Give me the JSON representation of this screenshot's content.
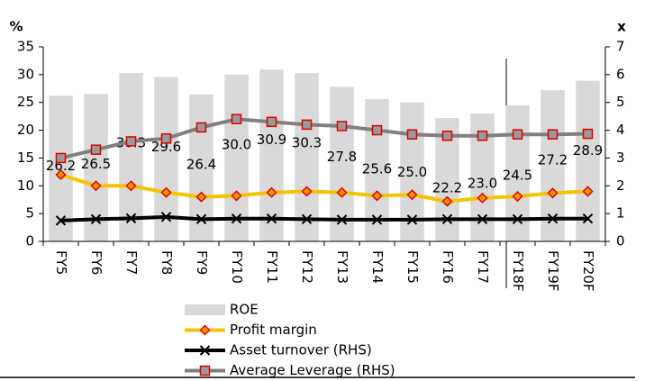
{
  "chart_data": {
    "type": "bar_line_combo",
    "y_label": "%",
    "y2_label": "x",
    "categories": [
      "FY5",
      "FY6",
      "FY7",
      "FY8",
      "FY9",
      "FY10",
      "FY11",
      "FY12",
      "FY13",
      "FY14",
      "FY15",
      "FY16",
      "FY17",
      "FY18F",
      "FY19F",
      "FY20F"
    ],
    "ylim": [
      0,
      35
    ],
    "yticks": [
      0,
      5,
      10,
      15,
      20,
      25,
      30,
      35
    ],
    "y2lim": [
      0,
      7
    ],
    "y2ticks": [
      0,
      1,
      2,
      3,
      4,
      5,
      6,
      7
    ],
    "series": [
      {
        "name": "ROE",
        "type": "bar",
        "color": "#d9d9d9",
        "values": [
          26.2,
          26.5,
          30.3,
          29.6,
          26.4,
          30,
          30.9,
          30.3,
          27.8,
          25.6,
          25,
          22.2,
          23,
          24.5,
          27.2,
          28.9
        ],
        "value_labels": [
          "26.2",
          "26.5",
          "30.3",
          "29.6",
          "26.4",
          "30.0",
          "30.9",
          "30.3",
          "27.8",
          "25.6",
          "25.0",
          "22.2",
          "23.0",
          "24.5",
          "27.2",
          "28.9"
        ]
      },
      {
        "name": "Profit margin",
        "type": "line",
        "color": "#f5c400",
        "marker": "diamond",
        "marker_color": "#ff9900",
        "marker_edge": "#e00000",
        "values": [
          12,
          10,
          10,
          8.8,
          8,
          8.2,
          8.8,
          9,
          8.8,
          8.2,
          8.4,
          7.2,
          7.8,
          8.1,
          8.7,
          9
        ]
      },
      {
        "name": "Asset turnover (RHS)",
        "type": "line",
        "axis": "y2",
        "color": "#000000",
        "marker": "x",
        "marker_color": "#000000",
        "marker_edge": "#000000",
        "values": [
          0.75,
          0.8,
          0.83,
          0.88,
          0.8,
          0.82,
          0.82,
          0.8,
          0.78,
          0.78,
          0.78,
          0.8,
          0.8,
          0.8,
          0.82,
          0.82
        ]
      },
      {
        "name": "Average Leverage (RHS)",
        "type": "line",
        "axis": "y2",
        "color": "#808080",
        "marker": "square",
        "marker_color": "#999999",
        "marker_edge": "#e00000",
        "values": [
          3.0,
          3.3,
          3.6,
          3.7,
          4.1,
          4.4,
          4.3,
          4.2,
          4.15,
          4.0,
          3.85,
          3.8,
          3.8,
          3.85,
          3.85,
          3.87
        ]
      }
    ]
  }
}
